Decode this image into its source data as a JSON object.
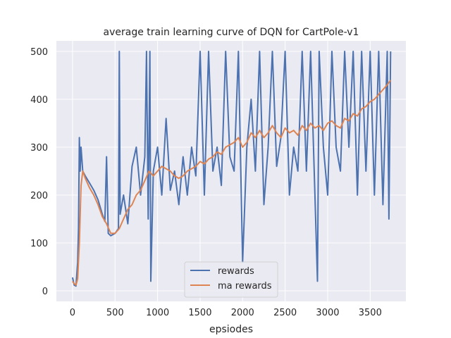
{
  "chart_data": {
    "type": "line",
    "title": "average train learning curve of DQN for CartPole-v1",
    "xlabel": "epsiodes",
    "ylabel": "",
    "xlim": [
      -190,
      3920
    ],
    "ylim": [
      -22,
      522
    ],
    "xticks": [
      0,
      500,
      1000,
      1500,
      2000,
      2500,
      3000,
      3500
    ],
    "yticks": [
      0,
      100,
      200,
      300,
      400,
      500
    ],
    "grid": true,
    "legend_position": "bottom-center",
    "series": [
      {
        "name": "rewards",
        "color": "#4c72b0",
        "points": [
          [
            0,
            28
          ],
          [
            20,
            12
          ],
          [
            40,
            10
          ],
          [
            60,
            60
          ],
          [
            70,
            130
          ],
          [
            80,
            320
          ],
          [
            90,
            250
          ],
          [
            100,
            300
          ],
          [
            120,
            250
          ],
          [
            150,
            240
          ],
          [
            200,
            225
          ],
          [
            250,
            210
          ],
          [
            300,
            190
          ],
          [
            350,
            160
          ],
          [
            380,
            145
          ],
          [
            400,
            280
          ],
          [
            420,
            120
          ],
          [
            450,
            115
          ],
          [
            500,
            120
          ],
          [
            540,
            130
          ],
          [
            550,
            500
          ],
          [
            560,
            160
          ],
          [
            600,
            200
          ],
          [
            650,
            140
          ],
          [
            700,
            260
          ],
          [
            750,
            300
          ],
          [
            800,
            200
          ],
          [
            850,
            280
          ],
          [
            870,
            500
          ],
          [
            890,
            150
          ],
          [
            910,
            500
          ],
          [
            920,
            20
          ],
          [
            950,
            250
          ],
          [
            1000,
            300
          ],
          [
            1050,
            200
          ],
          [
            1100,
            360
          ],
          [
            1150,
            210
          ],
          [
            1200,
            250
          ],
          [
            1250,
            180
          ],
          [
            1300,
            280
          ],
          [
            1350,
            200
          ],
          [
            1400,
            300
          ],
          [
            1450,
            240
          ],
          [
            1500,
            500
          ],
          [
            1550,
            200
          ],
          [
            1600,
            500
          ],
          [
            1650,
            250
          ],
          [
            1700,
            300
          ],
          [
            1750,
            220
          ],
          [
            1800,
            500
          ],
          [
            1850,
            280
          ],
          [
            1900,
            250
          ],
          [
            1950,
            500
          ],
          [
            2000,
            60
          ],
          [
            2050,
            300
          ],
          [
            2100,
            400
          ],
          [
            2150,
            250
          ],
          [
            2200,
            500
          ],
          [
            2250,
            180
          ],
          [
            2300,
            300
          ],
          [
            2350,
            500
          ],
          [
            2400,
            260
          ],
          [
            2450,
            320
          ],
          [
            2500,
            500
          ],
          [
            2550,
            200
          ],
          [
            2600,
            300
          ],
          [
            2650,
            250
          ],
          [
            2700,
            500
          ],
          [
            2750,
            250
          ],
          [
            2800,
            500
          ],
          [
            2850,
            200
          ],
          [
            2880,
            20
          ],
          [
            2900,
            500
          ],
          [
            2950,
            300
          ],
          [
            3000,
            200
          ],
          [
            3050,
            500
          ],
          [
            3100,
            300
          ],
          [
            3150,
            250
          ],
          [
            3200,
            500
          ],
          [
            3250,
            300
          ],
          [
            3300,
            500
          ],
          [
            3350,
            200
          ],
          [
            3400,
            500
          ],
          [
            3450,
            250
          ],
          [
            3500,
            500
          ],
          [
            3550,
            200
          ],
          [
            3600,
            500
          ],
          [
            3650,
            180
          ],
          [
            3700,
            500
          ],
          [
            3720,
            150
          ],
          [
            3740,
            500
          ]
        ]
      },
      {
        "name": "ma rewards",
        "color": "#dd8452",
        "points": [
          [
            0,
            20
          ],
          [
            20,
            15
          ],
          [
            40,
            12
          ],
          [
            60,
            25
          ],
          [
            80,
            100
          ],
          [
            100,
            220
          ],
          [
            120,
            250
          ],
          [
            150,
            235
          ],
          [
            200,
            215
          ],
          [
            250,
            200
          ],
          [
            300,
            180
          ],
          [
            350,
            155
          ],
          [
            400,
            140
          ],
          [
            450,
            120
          ],
          [
            500,
            120
          ],
          [
            550,
            130
          ],
          [
            600,
            150
          ],
          [
            650,
            170
          ],
          [
            700,
            180
          ],
          [
            750,
            200
          ],
          [
            800,
            210
          ],
          [
            850,
            230
          ],
          [
            900,
            250
          ],
          [
            950,
            240
          ],
          [
            1000,
            250
          ],
          [
            1050,
            260
          ],
          [
            1100,
            255
          ],
          [
            1150,
            250
          ],
          [
            1200,
            240
          ],
          [
            1250,
            235
          ],
          [
            1300,
            240
          ],
          [
            1350,
            250
          ],
          [
            1400,
            255
          ],
          [
            1450,
            260
          ],
          [
            1500,
            270
          ],
          [
            1550,
            265
          ],
          [
            1600,
            275
          ],
          [
            1650,
            280
          ],
          [
            1700,
            290
          ],
          [
            1750,
            285
          ],
          [
            1800,
            300
          ],
          [
            1850,
            305
          ],
          [
            1900,
            310
          ],
          [
            1950,
            320
          ],
          [
            2000,
            300
          ],
          [
            2050,
            310
          ],
          [
            2100,
            330
          ],
          [
            2150,
            320
          ],
          [
            2200,
            335
          ],
          [
            2250,
            320
          ],
          [
            2300,
            330
          ],
          [
            2350,
            345
          ],
          [
            2400,
            330
          ],
          [
            2450,
            320
          ],
          [
            2500,
            340
          ],
          [
            2550,
            330
          ],
          [
            2600,
            335
          ],
          [
            2650,
            325
          ],
          [
            2700,
            345
          ],
          [
            2750,
            335
          ],
          [
            2800,
            350
          ],
          [
            2850,
            340
          ],
          [
            2900,
            345
          ],
          [
            2950,
            335
          ],
          [
            3000,
            350
          ],
          [
            3050,
            355
          ],
          [
            3100,
            345
          ],
          [
            3150,
            340
          ],
          [
            3200,
            360
          ],
          [
            3250,
            355
          ],
          [
            3300,
            370
          ],
          [
            3350,
            365
          ],
          [
            3400,
            380
          ],
          [
            3450,
            385
          ],
          [
            3500,
            395
          ],
          [
            3550,
            400
          ],
          [
            3600,
            410
          ],
          [
            3650,
            420
          ],
          [
            3700,
            430
          ],
          [
            3740,
            440
          ]
        ]
      }
    ]
  }
}
